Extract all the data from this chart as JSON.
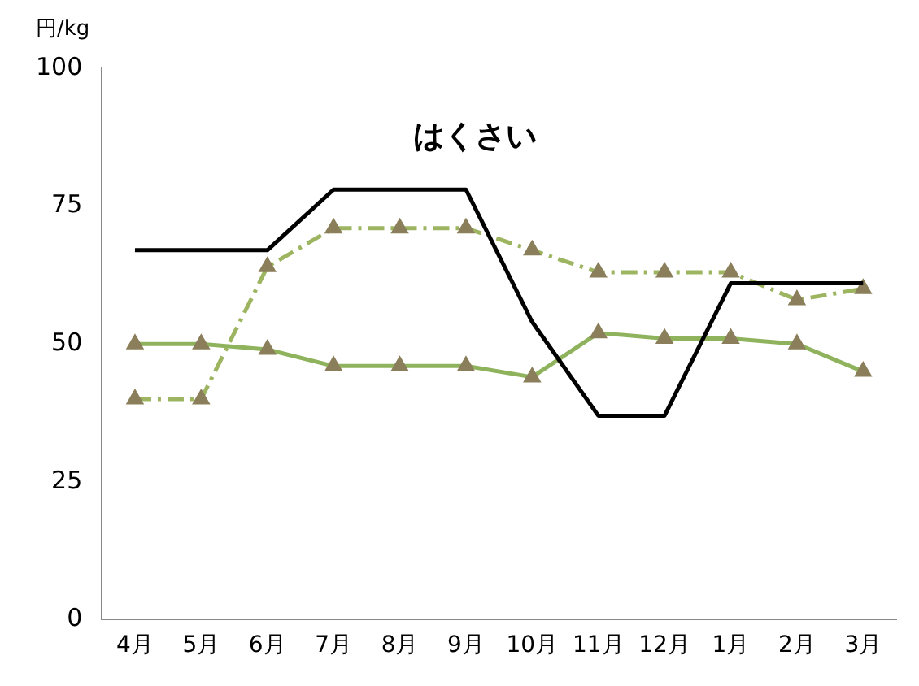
{
  "chart_data": {
    "type": "line",
    "ylabel": "円/kg",
    "annotations": [
      "はくさい"
    ],
    "categories": [
      "4月",
      "5月",
      "6月",
      "7月",
      "8月",
      "9月",
      "10月",
      "11月",
      "12月",
      "1月",
      "2月",
      "3月"
    ],
    "series": [
      {
        "color": "#000000",
        "marker": "none",
        "line_style": "solid",
        "values": [
          67,
          67,
          67,
          78,
          78,
          78,
          54,
          37,
          37,
          61,
          61,
          61
        ]
      },
      {
        "color": "#9db561",
        "marker": "triangle",
        "line_style": "dashed",
        "values": [
          40,
          40,
          64,
          71,
          71,
          71,
          67,
          63,
          63,
          63,
          58,
          60
        ]
      },
      {
        "color": "#8fb35c",
        "marker": "triangle",
        "line_style": "solid",
        "values": [
          50,
          50,
          49,
          46,
          46,
          46,
          44,
          52,
          51,
          51,
          50,
          45
        ]
      }
    ],
    "ylim": [
      0,
      100
    ],
    "yticks": [
      0,
      25,
      50,
      75,
      100
    ],
    "grid": false,
    "legend": false
  }
}
